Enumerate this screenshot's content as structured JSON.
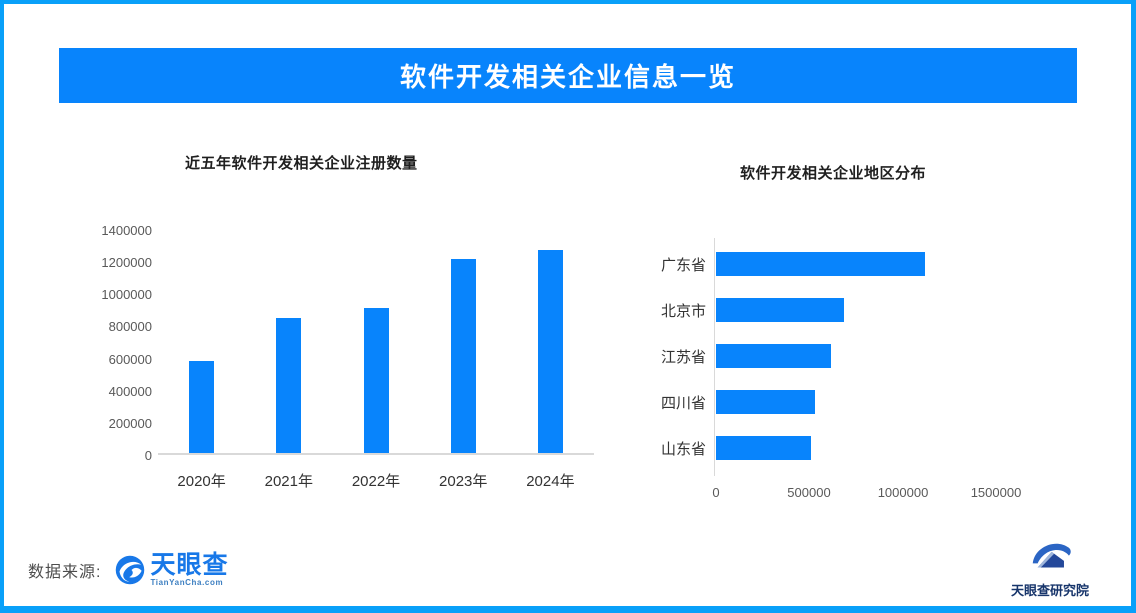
{
  "theme": {
    "accent": "#0884FC",
    "frame_border": "#09A0F9",
    "axis_line": "#D9D9D9",
    "tick_text": "#595959",
    "label_text": "#333333",
    "title_text": "#1F1F1F",
    "banner_text": "#FFFFFF",
    "tyc_blue": "#1878E8",
    "research_navy": "#17356B"
  },
  "header": {
    "title": "软件开发相关企业信息一览"
  },
  "chart_data": [
    {
      "type": "bar",
      "orientation": "vertical",
      "title": "近五年软件开发相关企业注册数量",
      "categories": [
        "2020年",
        "2021年",
        "2022年",
        "2023年",
        "2024年"
      ],
      "values": [
        575000,
        840000,
        905000,
        1205000,
        1265000
      ],
      "xlabel": "",
      "ylabel": "",
      "ylim": [
        0,
        1400000
      ],
      "ytick_step": 200000,
      "grid": false,
      "legend": "none",
      "bar_color": "#0884FC"
    },
    {
      "type": "bar",
      "orientation": "horizontal",
      "title": "软件开发相关企业地区分布",
      "categories": [
        "广东省",
        "北京市",
        "江苏省",
        "四川省",
        "山东省"
      ],
      "values": [
        1120000,
        685000,
        615000,
        530000,
        510000
      ],
      "xlabel": "",
      "ylabel": "",
      "xlim": [
        0,
        1500000
      ],
      "xticks": [
        0,
        500000,
        1000000,
        1500000
      ],
      "grid": false,
      "legend": "none",
      "bar_color": "#0884FC"
    }
  ],
  "footer": {
    "source_label": "数据来源:",
    "tyc_logo": {
      "name": "天眼查",
      "domain": "TianYanCha.com"
    },
    "research_logo": {
      "name": "天眼查研究院"
    }
  }
}
